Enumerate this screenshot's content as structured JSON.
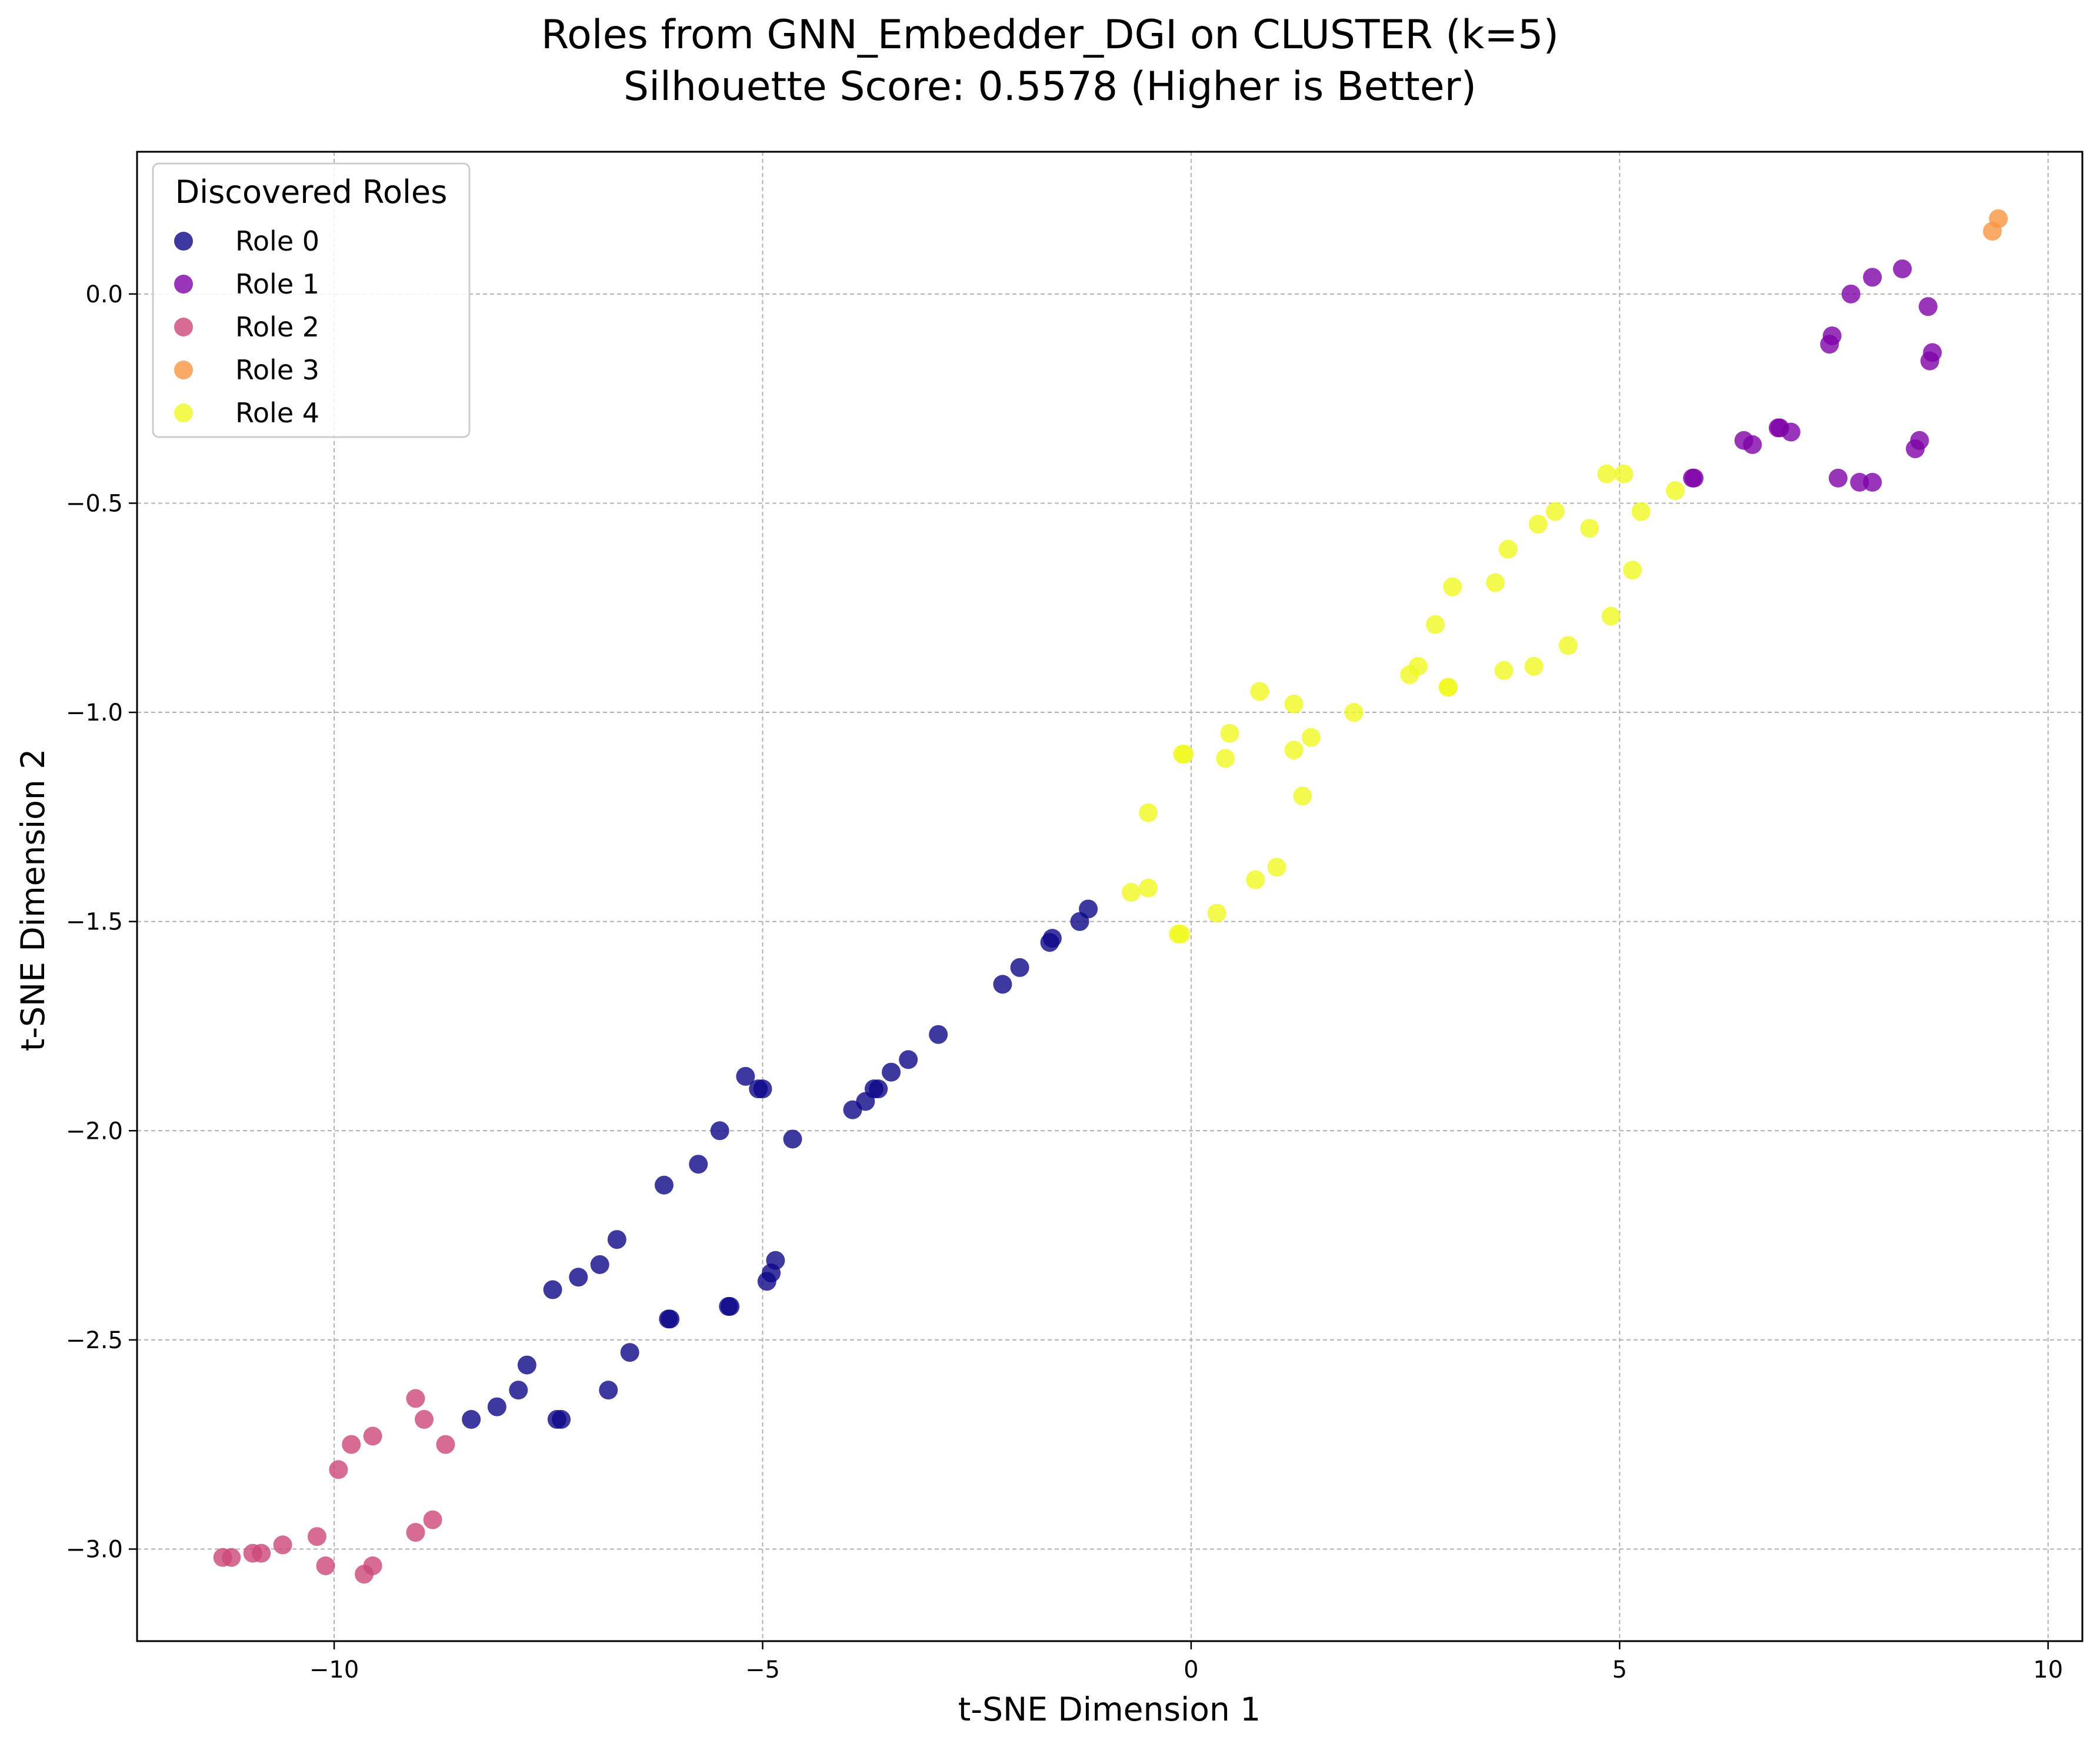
{
  "chart_data": {
    "type": "scatter",
    "title": "Roles from GNN_Embedder_DGI on CLUSTER (k=5)",
    "subtitle": "Silhouette Score: 0.5578 (Higher is Better)",
    "xlabel": "t-SNE Dimension 1",
    "ylabel": "t-SNE Dimension 2",
    "xlim": [
      -12.3,
      10.4
    ],
    "ylim": [
      -3.22,
      0.34
    ],
    "xticks": [
      -10,
      -5,
      0,
      5,
      10
    ],
    "yticks": [
      0.0,
      -0.5,
      -1.0,
      -1.5,
      -2.0,
      -2.5,
      -3.0
    ],
    "xtick_labels": [
      "−10",
      "−5",
      "0",
      "5",
      "10"
    ],
    "ytick_labels": [
      "0.0",
      "−0.5",
      "−1.0",
      "−1.5",
      "−2.0",
      "−2.5",
      "−3.0"
    ],
    "grid": true,
    "legend": {
      "title": "Discovered Roles",
      "position": "top-left"
    },
    "series": [
      {
        "name": "Role 0",
        "color": "#0d0887",
        "points": [
          [
            -8.4,
            -2.69
          ],
          [
            -8.1,
            -2.66
          ],
          [
            -7.85,
            -2.62
          ],
          [
            -7.75,
            -2.56
          ],
          [
            -7.4,
            -2.69
          ],
          [
            -7.35,
            -2.69
          ],
          [
            -7.45,
            -2.38
          ],
          [
            -7.15,
            -2.35
          ],
          [
            -6.9,
            -2.32
          ],
          [
            -6.7,
            -2.26
          ],
          [
            -6.8,
            -2.62
          ],
          [
            -6.55,
            -2.53
          ],
          [
            -6.15,
            -2.13
          ],
          [
            -6.1,
            -2.45
          ],
          [
            -6.08,
            -2.45
          ],
          [
            -5.75,
            -2.08
          ],
          [
            -5.5,
            -2.0
          ],
          [
            -5.4,
            -2.42
          ],
          [
            -5.38,
            -2.42
          ],
          [
            -5.2,
            -1.87
          ],
          [
            -5.05,
            -1.9
          ],
          [
            -5.0,
            -1.9
          ],
          [
            -4.95,
            -2.36
          ],
          [
            -4.9,
            -2.34
          ],
          [
            -4.85,
            -2.31
          ],
          [
            -4.65,
            -2.02
          ],
          [
            -3.95,
            -1.95
          ],
          [
            -3.8,
            -1.93
          ],
          [
            -3.7,
            -1.9
          ],
          [
            -3.65,
            -1.9
          ],
          [
            -3.5,
            -1.86
          ],
          [
            -3.3,
            -1.83
          ],
          [
            -2.95,
            -1.77
          ],
          [
            -2.2,
            -1.65
          ],
          [
            -2.0,
            -1.61
          ],
          [
            -1.65,
            -1.55
          ],
          [
            -1.62,
            -1.54
          ],
          [
            -1.3,
            -1.5
          ],
          [
            -1.2,
            -1.47
          ]
        ]
      },
      {
        "name": "Role 1",
        "color": "#7e03a8",
        "points": [
          [
            5.85,
            -0.44
          ],
          [
            5.87,
            -0.44
          ],
          [
            6.45,
            -0.35
          ],
          [
            6.55,
            -0.36
          ],
          [
            6.85,
            -0.32
          ],
          [
            6.87,
            -0.32
          ],
          [
            7.0,
            -0.33
          ],
          [
            7.45,
            -0.12
          ],
          [
            7.48,
            -0.1
          ],
          [
            7.55,
            -0.44
          ],
          [
            7.7,
            0.0
          ],
          [
            7.8,
            -0.45
          ],
          [
            7.95,
            -0.45
          ],
          [
            7.95,
            0.04
          ],
          [
            8.3,
            0.06
          ],
          [
            8.45,
            -0.37
          ],
          [
            8.5,
            -0.35
          ],
          [
            8.6,
            -0.03
          ],
          [
            8.62,
            -0.16
          ],
          [
            8.65,
            -0.14
          ]
        ]
      },
      {
        "name": "Role 2",
        "color": "#cc4778",
        "points": [
          [
            -11.3,
            -3.02
          ],
          [
            -11.2,
            -3.02
          ],
          [
            -10.95,
            -3.01
          ],
          [
            -10.85,
            -3.01
          ],
          [
            -10.6,
            -2.99
          ],
          [
            -10.2,
            -2.97
          ],
          [
            -10.1,
            -3.04
          ],
          [
            -9.95,
            -2.81
          ],
          [
            -9.8,
            -2.75
          ],
          [
            -9.65,
            -3.06
          ],
          [
            -9.55,
            -3.04
          ],
          [
            -9.55,
            -2.73
          ],
          [
            -9.05,
            -2.64
          ],
          [
            -9.05,
            -2.96
          ],
          [
            -8.95,
            -2.69
          ],
          [
            -8.85,
            -2.93
          ],
          [
            -8.7,
            -2.75
          ]
        ]
      },
      {
        "name": "Role 3",
        "color": "#f89540",
        "points": [
          [
            9.35,
            0.15
          ],
          [
            9.42,
            0.18
          ]
        ]
      },
      {
        "name": "Role 4",
        "color": "#f0f921",
        "points": [
          [
            -0.7,
            -1.43
          ],
          [
            -0.5,
            -1.42
          ],
          [
            -0.5,
            -1.24
          ],
          [
            -0.15,
            -1.53
          ],
          [
            -0.12,
            -1.53
          ],
          [
            -0.1,
            -1.1
          ],
          [
            -0.08,
            -1.1
          ],
          [
            0.3,
            -1.48
          ],
          [
            0.4,
            -1.11
          ],
          [
            0.45,
            -1.05
          ],
          [
            0.75,
            -1.4
          ],
          [
            0.8,
            -0.95
          ],
          [
            1.0,
            -1.37
          ],
          [
            1.2,
            -0.98
          ],
          [
            1.2,
            -1.09
          ],
          [
            1.3,
            -1.2
          ],
          [
            1.4,
            -1.06
          ],
          [
            1.9,
            -1.0
          ],
          [
            2.55,
            -0.91
          ],
          [
            2.65,
            -0.89
          ],
          [
            2.85,
            -0.79
          ],
          [
            3.0,
            -0.94
          ],
          [
            3.0,
            -0.94
          ],
          [
            3.05,
            -0.7
          ],
          [
            3.55,
            -0.69
          ],
          [
            3.65,
            -0.9
          ],
          [
            3.7,
            -0.61
          ],
          [
            4.0,
            -0.89
          ],
          [
            4.05,
            -0.55
          ],
          [
            4.25,
            -0.52
          ],
          [
            4.4,
            -0.84
          ],
          [
            4.65,
            -0.56
          ],
          [
            4.85,
            -0.43
          ],
          [
            4.9,
            -0.77
          ],
          [
            5.05,
            -0.43
          ],
          [
            5.15,
            -0.66
          ],
          [
            5.25,
            -0.52
          ],
          [
            5.65,
            -0.47
          ]
        ]
      }
    ]
  }
}
